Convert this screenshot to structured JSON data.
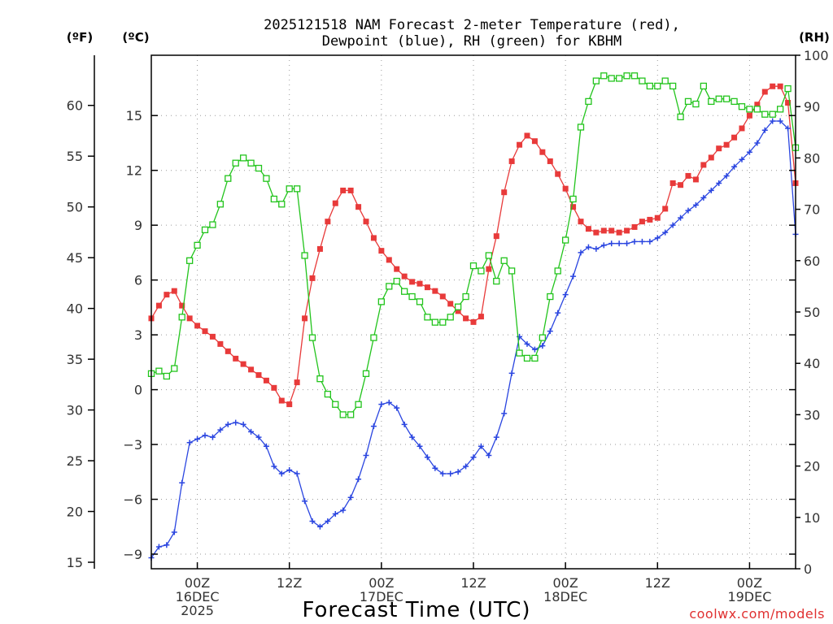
{
  "title_line1": "2025121518 NAM Forecast 2-meter Temperature (red),",
  "title_line2": "Dewpoint (blue), RH (green) for KBHM",
  "unit_f": "(ºF)",
  "unit_c": "(ºC)",
  "unit_rh": "(RH)",
  "xlabel": "Forecast Time (UTC)",
  "credit": "coolwx.com/models",
  "colors": {
    "temperature": "#e83a3a",
    "dewpoint": "#2a45e0",
    "rh": "#22c41c"
  },
  "chart_data": {
    "type": "line",
    "title": "2025121518 NAM Forecast 2-meter Temperature (red), Dewpoint (blue), RH (green) for KBHM",
    "xlabel": "Forecast Time (UTC)",
    "x_unit": "hours from 2025-12-15 18Z",
    "xlim": [
      0,
      84
    ],
    "x_ticks": [
      {
        "x": 6,
        "lines": [
          "00Z",
          "16DEC",
          "2025"
        ]
      },
      {
        "x": 18,
        "lines": [
          "12Z"
        ]
      },
      {
        "x": 30,
        "lines": [
          "00Z",
          "17DEC"
        ]
      },
      {
        "x": 42,
        "lines": [
          "12Z"
        ]
      },
      {
        "x": 54,
        "lines": [
          "00Z",
          "18DEC"
        ]
      },
      {
        "x": 66,
        "lines": [
          "12Z"
        ]
      },
      {
        "x": 78,
        "lines": [
          "00Z",
          "19DEC"
        ]
      }
    ],
    "axes": {
      "celsius": {
        "ylim": [
          -9.8,
          18.3
        ],
        "ticks": [
          -9,
          -6,
          -3,
          0,
          3,
          6,
          9,
          12,
          15
        ],
        "tick_labels": [
          "−9",
          "−6",
          "−3",
          "0",
          "3",
          "6",
          "9",
          "12",
          "15"
        ]
      },
      "fahrenheit": {
        "ticks": [
          15,
          20,
          25,
          30,
          35,
          40,
          45,
          50,
          55,
          60
        ],
        "tick_labels": [
          "15",
          "20",
          "25",
          "30",
          "35",
          "40",
          "45",
          "50",
          "55",
          "60"
        ]
      },
      "rh": {
        "ylim": [
          0,
          100
        ],
        "ticks": [
          0,
          10,
          20,
          30,
          40,
          50,
          60,
          70,
          80,
          90,
          100
        ],
        "tick_labels": [
          "0",
          "10",
          "20",
          "30",
          "40",
          "50",
          "60",
          "70",
          "80",
          "90",
          "100"
        ]
      }
    },
    "series": [
      {
        "key": "temperature",
        "axis": "celsius",
        "x": [
          0,
          1,
          2,
          3,
          4,
          5,
          6,
          7,
          8,
          9,
          10,
          11,
          12,
          13,
          14,
          15,
          16,
          17,
          18,
          19,
          20,
          21,
          22,
          23,
          24,
          25,
          26,
          27,
          28,
          29,
          30,
          31,
          32,
          33,
          34,
          35,
          36,
          37,
          38,
          39,
          40,
          41,
          42,
          43,
          44,
          45,
          46,
          47,
          48,
          49,
          50,
          51,
          52,
          53,
          54,
          55,
          56,
          57,
          58,
          59,
          60,
          61,
          62,
          63,
          64,
          65,
          66,
          67,
          68,
          69,
          70,
          71,
          72,
          73,
          74,
          75,
          76,
          77,
          78,
          79,
          80,
          81,
          82,
          83,
          84
        ],
        "values": [
          3.9,
          4.6,
          5.2,
          5.4,
          4.6,
          3.9,
          3.5,
          3.2,
          2.9,
          2.5,
          2.1,
          1.7,
          1.4,
          1.1,
          0.8,
          0.5,
          0.1,
          -0.6,
          -0.8,
          0.4,
          3.9,
          6.1,
          7.7,
          9.2,
          10.2,
          10.9,
          10.9,
          10.0,
          9.2,
          8.3,
          7.6,
          7.1,
          6.6,
          6.2,
          5.9,
          5.8,
          5.6,
          5.4,
          5.1,
          4.7,
          4.3,
          3.9,
          3.7,
          4.0,
          6.6,
          8.4,
          10.8,
          12.5,
          13.4,
          13.9,
          13.6,
          13.0,
          12.5,
          11.8,
          11.0,
          10.0,
          9.2,
          8.8,
          8.6,
          8.7,
          8.7,
          8.6,
          8.7,
          8.9,
          9.2,
          9.3,
          9.4,
          9.9,
          11.3,
          11.2,
          11.7,
          11.5,
          12.3,
          12.7,
          13.2,
          13.4,
          13.8,
          14.3,
          15.0,
          15.6,
          16.3,
          16.6,
          16.6,
          15.7,
          11.3
        ]
      },
      {
        "key": "dewpoint",
        "axis": "celsius",
        "x": [
          0,
          1,
          2,
          3,
          4,
          5,
          6,
          7,
          8,
          9,
          10,
          11,
          12,
          13,
          14,
          15,
          16,
          17,
          18,
          19,
          20,
          21,
          22,
          23,
          24,
          25,
          26,
          27,
          28,
          29,
          30,
          31,
          32,
          33,
          34,
          35,
          36,
          37,
          38,
          39,
          40,
          41,
          42,
          43,
          44,
          45,
          46,
          47,
          48,
          49,
          50,
          51,
          52,
          53,
          54,
          55,
          56,
          57,
          58,
          59,
          60,
          61,
          62,
          63,
          64,
          65,
          66,
          67,
          68,
          69,
          70,
          71,
          72,
          73,
          74,
          75,
          76,
          77,
          78,
          79,
          80,
          81,
          82,
          83,
          84
        ],
        "values": [
          -9.2,
          -8.6,
          -8.5,
          -7.8,
          -5.1,
          -2.9,
          -2.7,
          -2.5,
          -2.6,
          -2.2,
          -1.9,
          -1.8,
          -1.9,
          -2.3,
          -2.6,
          -3.1,
          -4.2,
          -4.6,
          -4.4,
          -4.6,
          -6.1,
          -7.2,
          -7.5,
          -7.2,
          -6.8,
          -6.6,
          -5.9,
          -4.9,
          -3.6,
          -2.0,
          -0.8,
          -0.7,
          -1.0,
          -1.9,
          -2.6,
          -3.1,
          -3.7,
          -4.3,
          -4.6,
          -4.6,
          -4.5,
          -4.2,
          -3.7,
          -3.1,
          -3.6,
          -2.6,
          -1.3,
          0.9,
          2.9,
          2.5,
          2.2,
          2.4,
          3.2,
          4.2,
          5.2,
          6.2,
          7.5,
          7.8,
          7.7,
          7.9,
          8.0,
          8.0,
          8.0,
          8.1,
          8.1,
          8.1,
          8.3,
          8.6,
          9.0,
          9.4,
          9.8,
          10.1,
          10.5,
          10.9,
          11.3,
          11.7,
          12.2,
          12.6,
          13.0,
          13.5,
          14.2,
          14.7,
          14.7,
          14.3,
          8.5
        ]
      },
      {
        "key": "rh",
        "axis": "rh",
        "x": [
          0,
          1,
          2,
          3,
          4,
          5,
          6,
          7,
          8,
          9,
          10,
          11,
          12,
          13,
          14,
          15,
          16,
          17,
          18,
          19,
          20,
          21,
          22,
          23,
          24,
          25,
          26,
          27,
          28,
          29,
          30,
          31,
          32,
          33,
          34,
          35,
          36,
          37,
          38,
          39,
          40,
          41,
          42,
          43,
          44,
          45,
          46,
          47,
          48,
          49,
          50,
          51,
          52,
          53,
          54,
          55,
          56,
          57,
          58,
          59,
          60,
          61,
          62,
          63,
          64,
          65,
          66,
          67,
          68,
          69,
          70,
          71,
          72,
          73,
          74,
          75,
          76,
          77,
          78,
          79,
          80,
          81,
          82,
          83,
          84
        ],
        "values": [
          38,
          38.5,
          37.5,
          39,
          49,
          60,
          63,
          66,
          67,
          71,
          76,
          79,
          80,
          79,
          78,
          76,
          72,
          71,
          74,
          74,
          61,
          45,
          37,
          34,
          32,
          30,
          30,
          32,
          38,
          45,
          52,
          55,
          56,
          54,
          53,
          52,
          49,
          48,
          48,
          49,
          51,
          53,
          59,
          58,
          61,
          56,
          60,
          58,
          42,
          41,
          41,
          45,
          53,
          58,
          64,
          72,
          86,
          91,
          95,
          96,
          95.5,
          95.5,
          96,
          96,
          95,
          94,
          94,
          95,
          94,
          88,
          91,
          90.5,
          94,
          91,
          91.5,
          91.5,
          91,
          90,
          89.5,
          89.5,
          88.5,
          88.5,
          89.5,
          93.5,
          82
        ]
      }
    ]
  }
}
